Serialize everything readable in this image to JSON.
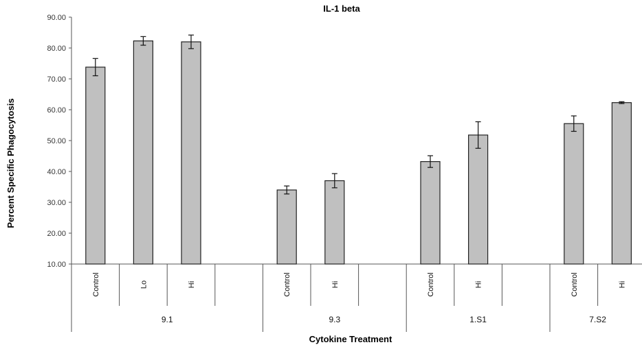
{
  "chart_data": {
    "type": "bar",
    "title": "IL-1 beta",
    "xlabel": "Cytokine Treatment",
    "ylabel": "Percent Specific Phagocytosis",
    "ylim": [
      10,
      90
    ],
    "yticks": [
      "10.00",
      "20.00",
      "30.00",
      "40.00",
      "50.00",
      "60.00",
      "70.00",
      "80.00",
      "90.00"
    ],
    "grid": false,
    "legend": "none",
    "bar_color": "#c0c0c0",
    "groups": [
      {
        "name": "9.1",
        "slots": 4,
        "bars": [
          {
            "category": "Control",
            "value": 73.8,
            "error": 2.8
          },
          {
            "category": "Lo",
            "value": 82.3,
            "error": 1.4
          },
          {
            "category": "Hi",
            "value": 82.0,
            "error": 2.2
          }
        ]
      },
      {
        "name": "9.3",
        "slots": 3,
        "bars": [
          {
            "category": "Control",
            "value": 34.0,
            "error": 1.3
          },
          {
            "category": "Hi",
            "value": 37.0,
            "error": 2.3
          }
        ]
      },
      {
        "name": "1.S1",
        "slots": 3,
        "bars": [
          {
            "category": "Control",
            "value": 43.2,
            "error": 1.9
          },
          {
            "category": "Hi",
            "value": 51.8,
            "error": 4.3
          }
        ]
      },
      {
        "name": "7.S2",
        "slots": 2,
        "bars": [
          {
            "category": "Control",
            "value": 55.5,
            "error": 2.5
          },
          {
            "category": "Hi",
            "value": 62.3,
            "error": 0.3
          }
        ]
      }
    ]
  }
}
